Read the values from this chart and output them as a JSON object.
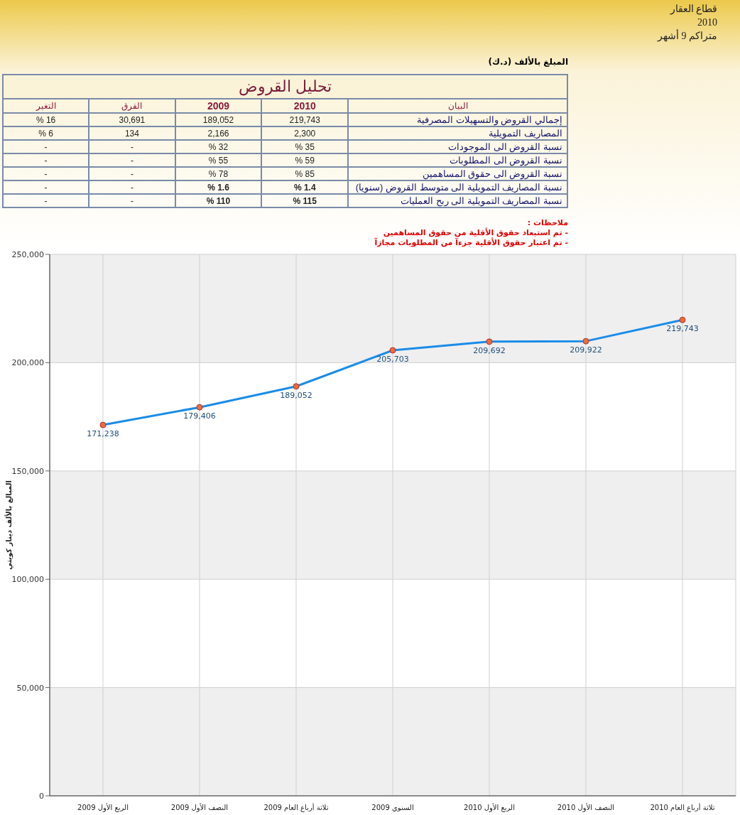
{
  "chart_data": [
    {
      "type": "other",
      "title": "تحليل القروض",
      "annotations": [
        "قطاع العقار",
        "2010",
        "متراكم 9 أشهر",
        "المبلغ بالألف (د.ك)",
        "ملاحظات :",
        "- تم استبعاد حقوق الأقلية من حقوق المساهمين",
        "- تم اعتبار حقوق الأقلية جزءآ من المطلوبات مجازآ"
      ],
      "categories": [
        "التغير",
        "الفرق",
        "2009",
        "2010",
        "البيان"
      ],
      "cell_labels": [
        [
          "16 %",
          "30,691",
          "189,052",
          "219,743",
          "إجمالي القروض والتسهيلات المصرفية"
        ],
        [
          "6 %",
          "134",
          "2,166",
          "2,300",
          "المصاريف التمويلية"
        ],
        [
          "-",
          "-",
          "32 %",
          "35 %",
          "نسبة القروض الى الموجودات"
        ],
        [
          "-",
          "-",
          "55 %",
          "59 %",
          "نسبة القروض الى المطلوبات"
        ],
        [
          "-",
          "-",
          "78 %",
          "85 %",
          "نسبة القروض الى حقوق المساهمين"
        ],
        [
          "-",
          "-",
          "1.6 %",
          "1.4 %",
          "نسبة المصاريف التمويلية الى متوسط القروض (سنويا)"
        ],
        [
          "-",
          "-",
          "110 %",
          "115 %",
          "نسبة المصاريف التمويلية الى ربح العمليات"
        ]
      ]
    },
    {
      "type": "line",
      "ylabel": "المبالغ بالألف دينار كويتي",
      "categories": [
        "الربع الأول 2009",
        "النصف الأول 2009",
        "ثلاثة أرباع العام 2009",
        "السنوي 2009",
        "الربع الأول 2010",
        "النصف الأول 2010",
        "ثلاثة أرباع العام 2010"
      ],
      "series": [
        {
          "color": "#1a8ce8",
          "values": [
            171238,
            179406,
            189052,
            205703,
            209692,
            209922,
            219743
          ],
          "value_labels": [
            "171,238",
            "179,406",
            "189,052",
            "205,703",
            "209,692",
            "209,922",
            "219,743"
          ],
          "colors": [
            "#f06a3a",
            "#f06a3a",
            "#f06a3a",
            "#f06a3a",
            "#f06a3a",
            "#f06a3a",
            "#f06a3a"
          ]
        }
      ],
      "ylim": [
        0,
        250000
      ],
      "yticks": [
        0,
        {
          "value": 50000,
          "label": "50,000"
        },
        {
          "value": 100000,
          "label": "100,000"
        },
        {
          "value": 150000,
          "label": "150,000"
        },
        {
          "value": 200000,
          "label": "200,000"
        },
        {
          "value": 250000,
          "label": "250,000"
        }
      ],
      "grid": true,
      "marker": "circle",
      "line_style": "solid"
    }
  ]
}
